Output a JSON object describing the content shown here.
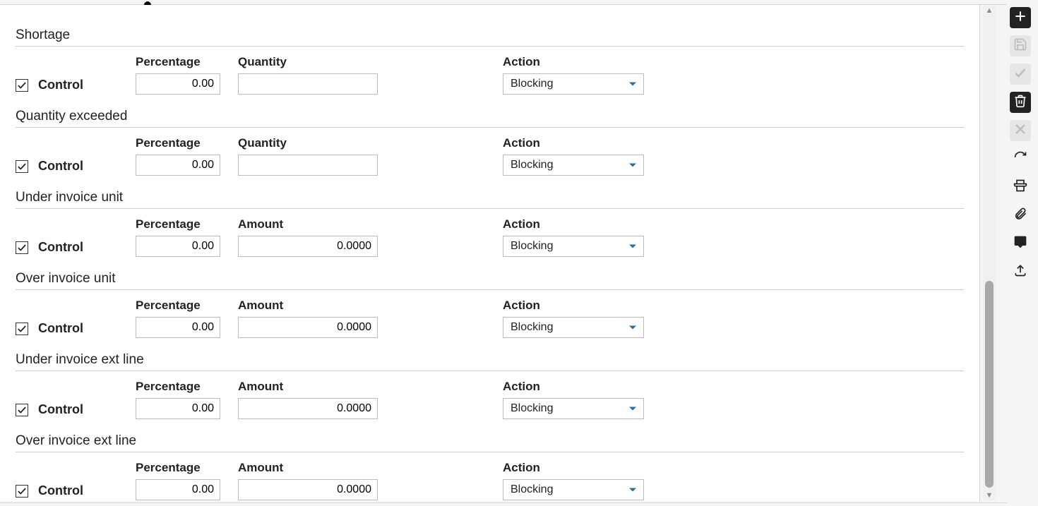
{
  "labels": {
    "control": "Control",
    "percentage": "Percentage",
    "quantity": "Quantity",
    "amount": "Amount",
    "action": "Action"
  },
  "style": {
    "input_border": "#bcbcbc",
    "divider": "#cfcfcf",
    "caret": "#2b6ca3",
    "sidebar_filled_bg": "#222222",
    "sidebar_disabled_bg": "#e6e6e6",
    "sidebar_disabled_fg": "#bdbdbd"
  },
  "sections": [
    {
      "title": "Shortage",
      "second_col": "quantity",
      "control": true,
      "percentage": "0.00",
      "second_value": "",
      "action": "Blocking"
    },
    {
      "title": "Quantity exceeded",
      "second_col": "quantity",
      "control": true,
      "percentage": "0.00",
      "second_value": "",
      "action": "Blocking"
    },
    {
      "title": "Under invoice unit",
      "second_col": "amount",
      "control": true,
      "percentage": "0.00",
      "second_value": "0.0000",
      "action": "Blocking"
    },
    {
      "title": "Over invoice unit",
      "second_col": "amount",
      "control": true,
      "percentage": "0.00",
      "second_value": "0.0000",
      "action": "Blocking"
    },
    {
      "title": "Under invoice ext line",
      "second_col": "amount",
      "control": true,
      "percentage": "0.00",
      "second_value": "0.0000",
      "action": "Blocking"
    },
    {
      "title": "Over invoice ext line",
      "second_col": "amount",
      "control": true,
      "percentage": "0.00",
      "second_value": "0.0000",
      "action": "Blocking"
    }
  ],
  "sidebar": [
    {
      "icon": "plus",
      "state": "filled"
    },
    {
      "icon": "save",
      "state": "disabled"
    },
    {
      "icon": "check",
      "state": "disabled"
    },
    {
      "icon": "trash",
      "state": "filled"
    },
    {
      "icon": "close",
      "state": "disabled"
    },
    {
      "icon": "refresh",
      "state": "normal"
    },
    {
      "icon": "print",
      "state": "normal"
    },
    {
      "icon": "attach",
      "state": "normal"
    },
    {
      "icon": "comment",
      "state": "normal"
    },
    {
      "icon": "export",
      "state": "normal"
    }
  ]
}
